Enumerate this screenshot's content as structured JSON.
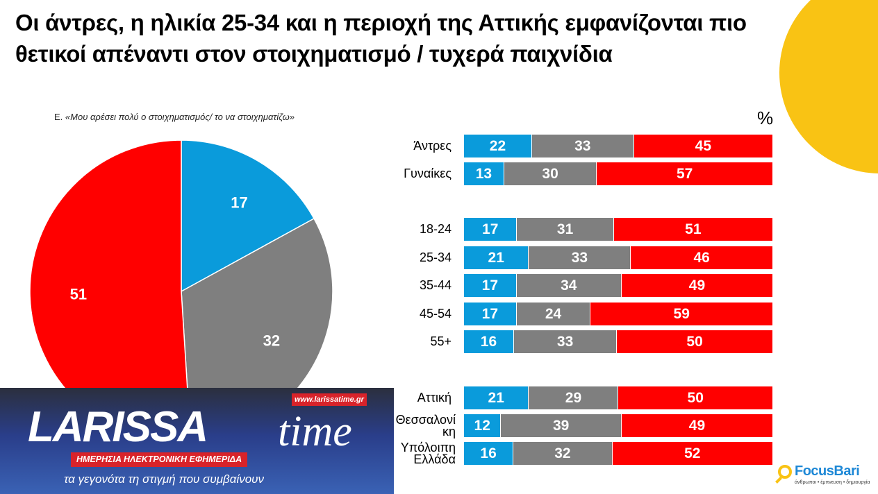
{
  "title": "Οι άντρες, η ηλικία 25-34 και η περιοχή της Αττικής εμφανίζονται πιο θετικοί απέναντι στον στοιχηματισμό / τυχερά παιχνίδια",
  "subtitle_prefix": "Ε.",
  "subtitle": "«Μου αρέσει πολύ ο στοιχηματισμός/ το να στοιχηματίζω»",
  "unit": "%",
  "colors": {
    "blue": "#0A9BDB",
    "gray": "#7F7F7F",
    "red": "#FF0000",
    "yellow": "#F9C314"
  },
  "chart_data": [
    {
      "type": "pie",
      "values": [
        17,
        32,
        51
      ],
      "colors": [
        "#0A9BDB",
        "#7F7F7F",
        "#FF0000"
      ],
      "start": "top",
      "direction": "clockwise"
    },
    {
      "type": "bar",
      "stacked": true,
      "orientation": "horizontal",
      "xlim": [
        0,
        100
      ],
      "rows": [
        {
          "label": "Άντρες",
          "values": [
            22,
            33,
            45
          ],
          "group": 0
        },
        {
          "label": "Γυναίκες",
          "values": [
            13,
            30,
            57
          ],
          "group": 0
        },
        {
          "label": "18-24",
          "values": [
            17,
            31,
            51
          ],
          "group": 1
        },
        {
          "label": "25-34",
          "values": [
            21,
            33,
            46
          ],
          "group": 1
        },
        {
          "label": "35-44",
          "values": [
            17,
            34,
            49
          ],
          "group": 1
        },
        {
          "label": "45-54",
          "values": [
            17,
            24,
            59
          ],
          "group": 1
        },
        {
          "label": "55+",
          "values": [
            16,
            33,
            50
          ],
          "group": 1
        },
        {
          "label": "Αττική",
          "values": [
            21,
            29,
            50
          ],
          "group": 2
        },
        {
          "label": "Θεσσαλονίκη",
          "values": [
            12,
            39,
            49
          ],
          "group": 2
        },
        {
          "label": "Υπόλοιπη Ελλάδα",
          "values": [
            16,
            32,
            52
          ],
          "group": 2
        }
      ]
    }
  ],
  "logo": {
    "brand": "LARISSA",
    "brand2": "time",
    "url": "www.larissatime.gr",
    "banner": "ΗΜΕΡΗΣΙΑ ΗΛΕΚΤΡΟΝΙΚΗ ΕΦΗΜΕΡΙΔΑ",
    "tagline": "τα γεγονότα τη στιγμή που συμβαίνουν"
  },
  "focus": {
    "name": "FocusBari",
    "tagline": "άνθρωποι • έμπνευση • δημιουργία"
  }
}
